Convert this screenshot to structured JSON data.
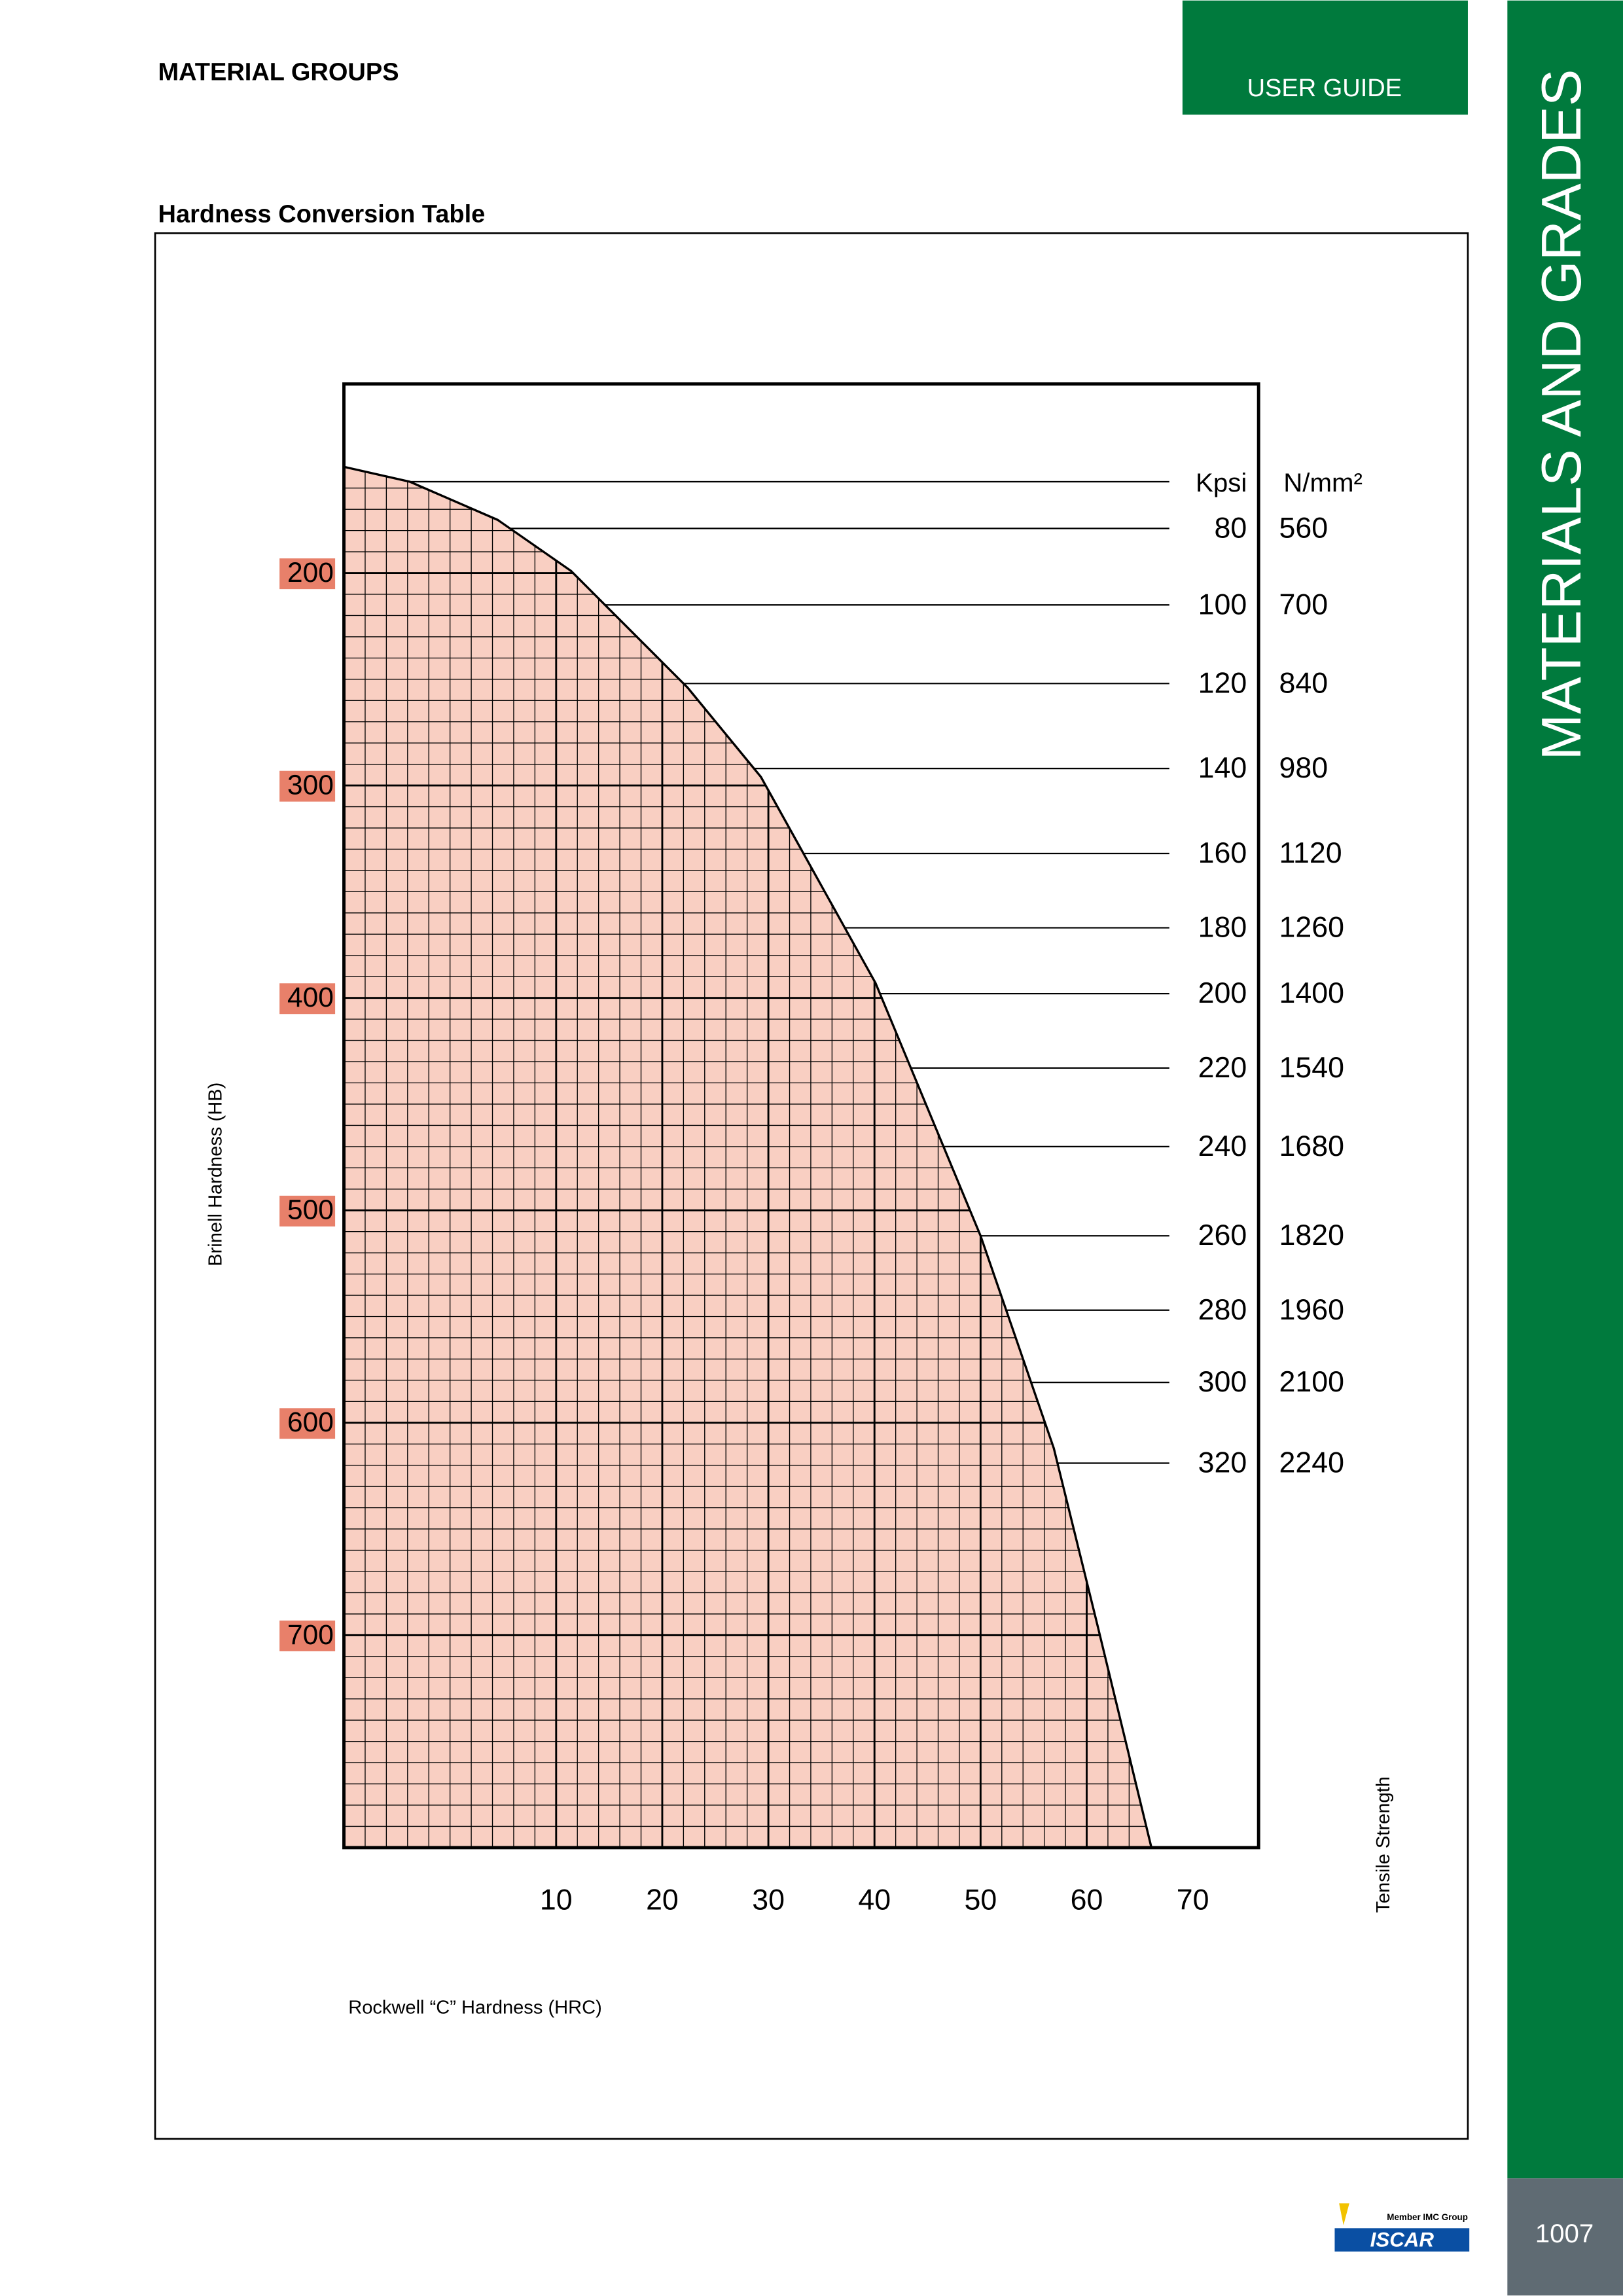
{
  "header": {
    "section": "MATERIAL GROUPS",
    "tab": "USER GUIDE",
    "sidebar": "MATERIALS AND GRADES",
    "page_number": "1007"
  },
  "chart": {
    "type": "line",
    "title": "Hardness Conversion Table",
    "y_label": "Brinell Hardness (HB)",
    "x_label": "Rockwell “C” Hardness (HRC)",
    "tensile_label": "Tensile Strength",
    "xlim": [
      -10,
      76.2
    ],
    "xticks": [
      10,
      20,
      30,
      40,
      50,
      60,
      70
    ],
    "ylim": [
      111,
      800
    ],
    "yticks": [
      200,
      300,
      400,
      500,
      600,
      700
    ],
    "grid_minor": {
      "x": 2,
      "y": 10
    },
    "fill_color": "#f9cfc2",
    "tick_label_color": "#e8806a",
    "curve": {
      "hrc": [
        -10,
        -3.8,
        4.5,
        11.4,
        22.4,
        29.3,
        40.1,
        50,
        56.9,
        61,
        66.1
      ],
      "hb": [
        150,
        157,
        175,
        199,
        254,
        296,
        393,
        512,
        612,
        695,
        800
      ]
    },
    "tensile": {
      "header_hb": 157,
      "kpsi_header": "Kpsi",
      "nmm_header": "N/mm²",
      "hb": [
        179,
        215,
        252,
        292,
        332,
        367,
        398,
        433,
        470,
        512,
        547,
        581,
        619
      ],
      "kpsi": [
        80,
        100,
        120,
        140,
        160,
        180,
        200,
        220,
        240,
        260,
        280,
        300,
        320
      ],
      "nmm": [
        560,
        700,
        840,
        980,
        1120,
        1260,
        1400,
        1540,
        1680,
        1820,
        1960,
        2100,
        2240
      ]
    }
  },
  "footer": {
    "logo_caption": "Member IMC Group",
    "logo": "ISCAR"
  }
}
